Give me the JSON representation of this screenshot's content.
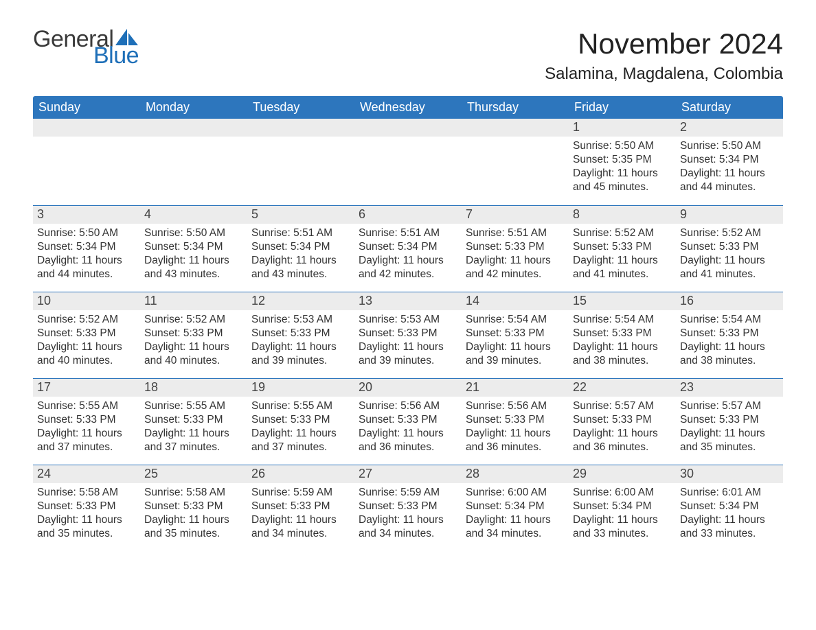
{
  "colors": {
    "header_blue": "#2d76bd",
    "logo_dark": "#3a3a3a",
    "logo_blue": "#1e6fb8",
    "date_bg": "#ececec",
    "row_border": "#2d76bd",
    "text_dark": "#333333",
    "page_bg": "#ffffff"
  },
  "typography": {
    "title_fontsize": 42,
    "location_fontsize": 24,
    "dow_fontsize": 18,
    "date_fontsize": 18,
    "body_fontsize": 15.5,
    "font_family": "Arial"
  },
  "logo": {
    "word1": "General",
    "word2": "Blue"
  },
  "title": "November 2024",
  "location": "Salamina, Magdalena, Colombia",
  "days_of_week": [
    "Sunday",
    "Monday",
    "Tuesday",
    "Wednesday",
    "Thursday",
    "Friday",
    "Saturday"
  ],
  "weeks": [
    [
      {
        "empty": true
      },
      {
        "empty": true
      },
      {
        "empty": true
      },
      {
        "empty": true
      },
      {
        "empty": true
      },
      {
        "date": "1",
        "sunrise": "Sunrise: 5:50 AM",
        "sunset": "Sunset: 5:35 PM",
        "daylight1": "Daylight: 11 hours",
        "daylight2": "and 45 minutes."
      },
      {
        "date": "2",
        "sunrise": "Sunrise: 5:50 AM",
        "sunset": "Sunset: 5:34 PM",
        "daylight1": "Daylight: 11 hours",
        "daylight2": "and 44 minutes."
      }
    ],
    [
      {
        "date": "3",
        "sunrise": "Sunrise: 5:50 AM",
        "sunset": "Sunset: 5:34 PM",
        "daylight1": "Daylight: 11 hours",
        "daylight2": "and 44 minutes."
      },
      {
        "date": "4",
        "sunrise": "Sunrise: 5:50 AM",
        "sunset": "Sunset: 5:34 PM",
        "daylight1": "Daylight: 11 hours",
        "daylight2": "and 43 minutes."
      },
      {
        "date": "5",
        "sunrise": "Sunrise: 5:51 AM",
        "sunset": "Sunset: 5:34 PM",
        "daylight1": "Daylight: 11 hours",
        "daylight2": "and 43 minutes."
      },
      {
        "date": "6",
        "sunrise": "Sunrise: 5:51 AM",
        "sunset": "Sunset: 5:34 PM",
        "daylight1": "Daylight: 11 hours",
        "daylight2": "and 42 minutes."
      },
      {
        "date": "7",
        "sunrise": "Sunrise: 5:51 AM",
        "sunset": "Sunset: 5:33 PM",
        "daylight1": "Daylight: 11 hours",
        "daylight2": "and 42 minutes."
      },
      {
        "date": "8",
        "sunrise": "Sunrise: 5:52 AM",
        "sunset": "Sunset: 5:33 PM",
        "daylight1": "Daylight: 11 hours",
        "daylight2": "and 41 minutes."
      },
      {
        "date": "9",
        "sunrise": "Sunrise: 5:52 AM",
        "sunset": "Sunset: 5:33 PM",
        "daylight1": "Daylight: 11 hours",
        "daylight2": "and 41 minutes."
      }
    ],
    [
      {
        "date": "10",
        "sunrise": "Sunrise: 5:52 AM",
        "sunset": "Sunset: 5:33 PM",
        "daylight1": "Daylight: 11 hours",
        "daylight2": "and 40 minutes."
      },
      {
        "date": "11",
        "sunrise": "Sunrise: 5:52 AM",
        "sunset": "Sunset: 5:33 PM",
        "daylight1": "Daylight: 11 hours",
        "daylight2": "and 40 minutes."
      },
      {
        "date": "12",
        "sunrise": "Sunrise: 5:53 AM",
        "sunset": "Sunset: 5:33 PM",
        "daylight1": "Daylight: 11 hours",
        "daylight2": "and 39 minutes."
      },
      {
        "date": "13",
        "sunrise": "Sunrise: 5:53 AM",
        "sunset": "Sunset: 5:33 PM",
        "daylight1": "Daylight: 11 hours",
        "daylight2": "and 39 minutes."
      },
      {
        "date": "14",
        "sunrise": "Sunrise: 5:54 AM",
        "sunset": "Sunset: 5:33 PM",
        "daylight1": "Daylight: 11 hours",
        "daylight2": "and 39 minutes."
      },
      {
        "date": "15",
        "sunrise": "Sunrise: 5:54 AM",
        "sunset": "Sunset: 5:33 PM",
        "daylight1": "Daylight: 11 hours",
        "daylight2": "and 38 minutes."
      },
      {
        "date": "16",
        "sunrise": "Sunrise: 5:54 AM",
        "sunset": "Sunset: 5:33 PM",
        "daylight1": "Daylight: 11 hours",
        "daylight2": "and 38 minutes."
      }
    ],
    [
      {
        "date": "17",
        "sunrise": "Sunrise: 5:55 AM",
        "sunset": "Sunset: 5:33 PM",
        "daylight1": "Daylight: 11 hours",
        "daylight2": "and 37 minutes."
      },
      {
        "date": "18",
        "sunrise": "Sunrise: 5:55 AM",
        "sunset": "Sunset: 5:33 PM",
        "daylight1": "Daylight: 11 hours",
        "daylight2": "and 37 minutes."
      },
      {
        "date": "19",
        "sunrise": "Sunrise: 5:55 AM",
        "sunset": "Sunset: 5:33 PM",
        "daylight1": "Daylight: 11 hours",
        "daylight2": "and 37 minutes."
      },
      {
        "date": "20",
        "sunrise": "Sunrise: 5:56 AM",
        "sunset": "Sunset: 5:33 PM",
        "daylight1": "Daylight: 11 hours",
        "daylight2": "and 36 minutes."
      },
      {
        "date": "21",
        "sunrise": "Sunrise: 5:56 AM",
        "sunset": "Sunset: 5:33 PM",
        "daylight1": "Daylight: 11 hours",
        "daylight2": "and 36 minutes."
      },
      {
        "date": "22",
        "sunrise": "Sunrise: 5:57 AM",
        "sunset": "Sunset: 5:33 PM",
        "daylight1": "Daylight: 11 hours",
        "daylight2": "and 36 minutes."
      },
      {
        "date": "23",
        "sunrise": "Sunrise: 5:57 AM",
        "sunset": "Sunset: 5:33 PM",
        "daylight1": "Daylight: 11 hours",
        "daylight2": "and 35 minutes."
      }
    ],
    [
      {
        "date": "24",
        "sunrise": "Sunrise: 5:58 AM",
        "sunset": "Sunset: 5:33 PM",
        "daylight1": "Daylight: 11 hours",
        "daylight2": "and 35 minutes."
      },
      {
        "date": "25",
        "sunrise": "Sunrise: 5:58 AM",
        "sunset": "Sunset: 5:33 PM",
        "daylight1": "Daylight: 11 hours",
        "daylight2": "and 35 minutes."
      },
      {
        "date": "26",
        "sunrise": "Sunrise: 5:59 AM",
        "sunset": "Sunset: 5:33 PM",
        "daylight1": "Daylight: 11 hours",
        "daylight2": "and 34 minutes."
      },
      {
        "date": "27",
        "sunrise": "Sunrise: 5:59 AM",
        "sunset": "Sunset: 5:33 PM",
        "daylight1": "Daylight: 11 hours",
        "daylight2": "and 34 minutes."
      },
      {
        "date": "28",
        "sunrise": "Sunrise: 6:00 AM",
        "sunset": "Sunset: 5:34 PM",
        "daylight1": "Daylight: 11 hours",
        "daylight2": "and 34 minutes."
      },
      {
        "date": "29",
        "sunrise": "Sunrise: 6:00 AM",
        "sunset": "Sunset: 5:34 PM",
        "daylight1": "Daylight: 11 hours",
        "daylight2": "and 33 minutes."
      },
      {
        "date": "30",
        "sunrise": "Sunrise: 6:01 AM",
        "sunset": "Sunset: 5:34 PM",
        "daylight1": "Daylight: 11 hours",
        "daylight2": "and 33 minutes."
      }
    ]
  ]
}
